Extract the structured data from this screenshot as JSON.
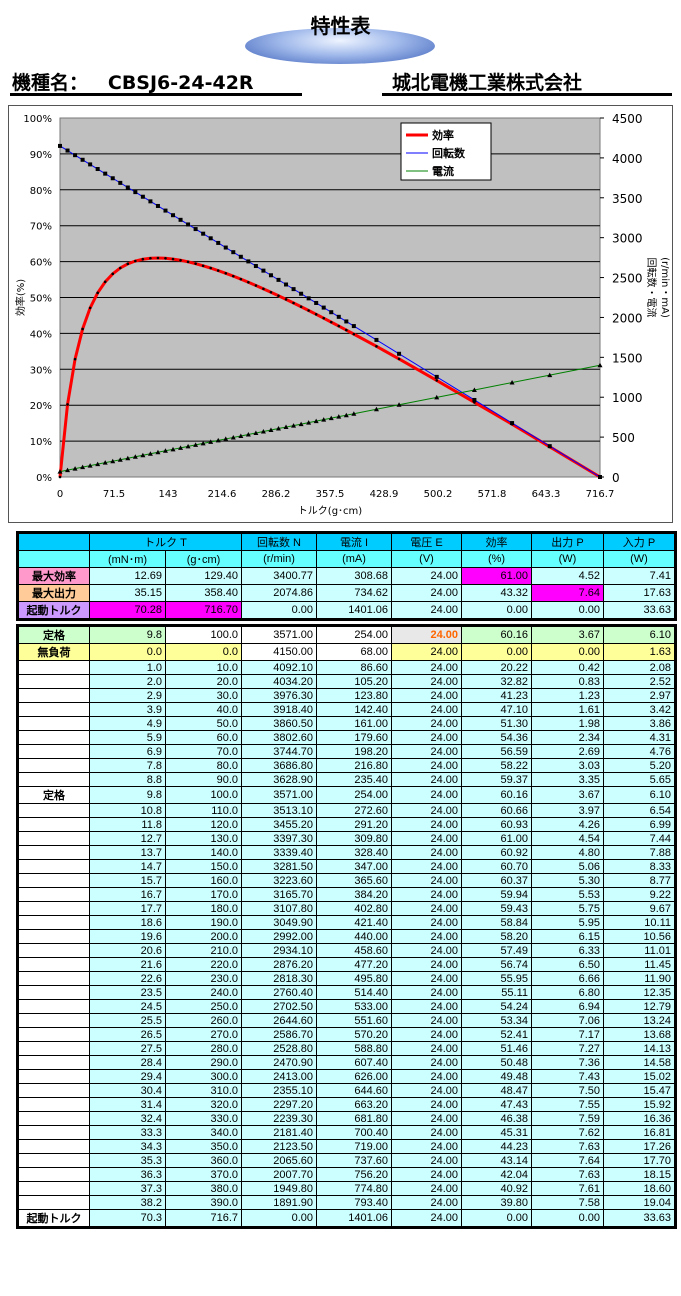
{
  "header": {
    "title": "特性表",
    "model_label": "機種名：",
    "model": "CBSJ6-24-42R",
    "company": "城北電機工業株式会社"
  },
  "summary_table": {
    "columns": [
      "トルク T",
      "回転数 N",
      "電流 I",
      "電圧 E",
      "効率",
      "出力 P",
      "入力 P"
    ],
    "units": [
      "(mN･m)",
      "(g･cm)",
      "(r/min)",
      "(mA)",
      "(V)",
      "(%)",
      "(W)",
      "(W)"
    ],
    "rows": [
      {
        "label": "最大効率",
        "label_color": "#ff99cc",
        "values": [
          "12.69",
          "129.40",
          "3400.77",
          "308.68",
          "24.00",
          "61.00",
          "4.52",
          "7.41"
        ],
        "highlight": [
          5
        ]
      },
      {
        "label": "最大出力",
        "label_color": "#ffcc99",
        "values": [
          "35.15",
          "358.40",
          "2074.86",
          "734.62",
          "24.00",
          "43.32",
          "7.64",
          "17.63"
        ],
        "highlight": [
          6
        ]
      },
      {
        "label": "起動トルク",
        "label_color": "#cc99ff",
        "values": [
          "70.28",
          "716.70",
          "0.00",
          "1401.06",
          "24.00",
          "0.00",
          "0.00",
          "33.63"
        ],
        "highlight": [
          0,
          1
        ]
      }
    ]
  },
  "data_table": {
    "rated": {
      "label": "定格",
      "values": [
        "9.8",
        "100.0",
        "3571.00",
        "254.00",
        "24.00",
        "60.16",
        "3.67",
        "6.10"
      ]
    },
    "no_load": {
      "label": "無負荷",
      "values": [
        "0.0",
        "0.0",
        "4150.00",
        "68.00",
        "24.00",
        "0.00",
        "0.00",
        "1.63"
      ]
    },
    "rows": [
      [
        "",
        "1.0",
        "10.0",
        "4092.10",
        "86.60",
        "24.00",
        "20.22",
        "0.42",
        "2.08"
      ],
      [
        "",
        "2.0",
        "20.0",
        "4034.20",
        "105.20",
        "24.00",
        "32.82",
        "0.83",
        "2.52"
      ],
      [
        "",
        "2.9",
        "30.0",
        "3976.30",
        "123.80",
        "24.00",
        "41.23",
        "1.23",
        "2.97"
      ],
      [
        "",
        "3.9",
        "40.0",
        "3918.40",
        "142.40",
        "24.00",
        "47.10",
        "1.61",
        "3.42"
      ],
      [
        "",
        "4.9",
        "50.0",
        "3860.50",
        "161.00",
        "24.00",
        "51.30",
        "1.98",
        "3.86"
      ],
      [
        "",
        "5.9",
        "60.0",
        "3802.60",
        "179.60",
        "24.00",
        "54.36",
        "2.34",
        "4.31"
      ],
      [
        "",
        "6.9",
        "70.0",
        "3744.70",
        "198.20",
        "24.00",
        "56.59",
        "2.69",
        "4.76"
      ],
      [
        "",
        "7.8",
        "80.0",
        "3686.80",
        "216.80",
        "24.00",
        "58.22",
        "3.03",
        "5.20"
      ],
      [
        "",
        "8.8",
        "90.0",
        "3628.90",
        "235.40",
        "24.00",
        "59.37",
        "3.35",
        "5.65"
      ],
      [
        "定格",
        "9.8",
        "100.0",
        "3571.00",
        "254.00",
        "24.00",
        "60.16",
        "3.67",
        "6.10"
      ],
      [
        "",
        "10.8",
        "110.0",
        "3513.10",
        "272.60",
        "24.00",
        "60.66",
        "3.97",
        "6.54"
      ],
      [
        "",
        "11.8",
        "120.0",
        "3455.20",
        "291.20",
        "24.00",
        "60.93",
        "4.26",
        "6.99"
      ],
      [
        "",
        "12.7",
        "130.0",
        "3397.30",
        "309.80",
        "24.00",
        "61.00",
        "4.54",
        "7.44"
      ],
      [
        "",
        "13.7",
        "140.0",
        "3339.40",
        "328.40",
        "24.00",
        "60.92",
        "4.80",
        "7.88"
      ],
      [
        "",
        "14.7",
        "150.0",
        "3281.50",
        "347.00",
        "24.00",
        "60.70",
        "5.06",
        "8.33"
      ],
      [
        "",
        "15.7",
        "160.0",
        "3223.60",
        "365.60",
        "24.00",
        "60.37",
        "5.30",
        "8.77"
      ],
      [
        "",
        "16.7",
        "170.0",
        "3165.70",
        "384.20",
        "24.00",
        "59.94",
        "5.53",
        "9.22"
      ],
      [
        "",
        "17.7",
        "180.0",
        "3107.80",
        "402.80",
        "24.00",
        "59.43",
        "5.75",
        "9.67"
      ],
      [
        "",
        "18.6",
        "190.0",
        "3049.90",
        "421.40",
        "24.00",
        "58.84",
        "5.95",
        "10.11"
      ],
      [
        "",
        "19.6",
        "200.0",
        "2992.00",
        "440.00",
        "24.00",
        "58.20",
        "6.15",
        "10.56"
      ],
      [
        "",
        "20.6",
        "210.0",
        "2934.10",
        "458.60",
        "24.00",
        "57.49",
        "6.33",
        "11.01"
      ],
      [
        "",
        "21.6",
        "220.0",
        "2876.20",
        "477.20",
        "24.00",
        "56.74",
        "6.50",
        "11.45"
      ],
      [
        "",
        "22.6",
        "230.0",
        "2818.30",
        "495.80",
        "24.00",
        "55.95",
        "6.66",
        "11.90"
      ],
      [
        "",
        "23.5",
        "240.0",
        "2760.40",
        "514.40",
        "24.00",
        "55.11",
        "6.80",
        "12.35"
      ],
      [
        "",
        "24.5",
        "250.0",
        "2702.50",
        "533.00",
        "24.00",
        "54.24",
        "6.94",
        "12.79"
      ],
      [
        "",
        "25.5",
        "260.0",
        "2644.60",
        "551.60",
        "24.00",
        "53.34",
        "7.06",
        "13.24"
      ],
      [
        "",
        "26.5",
        "270.0",
        "2586.70",
        "570.20",
        "24.00",
        "52.41",
        "7.17",
        "13.68"
      ],
      [
        "",
        "27.5",
        "280.0",
        "2528.80",
        "588.80",
        "24.00",
        "51.46",
        "7.27",
        "14.13"
      ],
      [
        "",
        "28.4",
        "290.0",
        "2470.90",
        "607.40",
        "24.00",
        "50.48",
        "7.36",
        "14.58"
      ],
      [
        "",
        "29.4",
        "300.0",
        "2413.00",
        "626.00",
        "24.00",
        "49.48",
        "7.43",
        "15.02"
      ],
      [
        "",
        "30.4",
        "310.0",
        "2355.10",
        "644.60",
        "24.00",
        "48.47",
        "7.50",
        "15.47"
      ],
      [
        "",
        "31.4",
        "320.0",
        "2297.20",
        "663.20",
        "24.00",
        "47.43",
        "7.55",
        "15.92"
      ],
      [
        "",
        "32.4",
        "330.0",
        "2239.30",
        "681.80",
        "24.00",
        "46.38",
        "7.59",
        "16.36"
      ],
      [
        "",
        "33.3",
        "340.0",
        "2181.40",
        "700.40",
        "24.00",
        "45.31",
        "7.62",
        "16.81"
      ],
      [
        "",
        "34.3",
        "350.0",
        "2123.50",
        "719.00",
        "24.00",
        "44.23",
        "7.63",
        "17.26"
      ],
      [
        "",
        "35.3",
        "360.0",
        "2065.60",
        "737.60",
        "24.00",
        "43.14",
        "7.64",
        "17.70"
      ],
      [
        "",
        "36.3",
        "370.0",
        "2007.70",
        "756.20",
        "24.00",
        "42.04",
        "7.63",
        "18.15"
      ],
      [
        "",
        "37.3",
        "380.0",
        "1949.80",
        "774.80",
        "24.00",
        "40.92",
        "7.61",
        "18.60"
      ],
      [
        "",
        "38.2",
        "390.0",
        "1891.90",
        "793.40",
        "24.00",
        "39.80",
        "7.58",
        "19.04"
      ],
      [
        "起動トルク",
        "70.3",
        "716.7",
        "0.00",
        "1401.06",
        "24.00",
        "0.00",
        "0.00",
        "33.63"
      ]
    ]
  },
  "chart_data": {
    "type": "line",
    "xlabel": "トルク(g･cm)",
    "ylabel_left": "効率(%)",
    "ylabel_right": "回転数・電流\n(r/min・mA)",
    "xlim": [
      0,
      716.7
    ],
    "xticks": [
      "0",
      "71.5",
      "143",
      "214.6",
      "286.2",
      "357.5",
      "428.9",
      "500.2",
      "571.8",
      "643.3",
      "716.7"
    ],
    "ylim_left": [
      0,
      100
    ],
    "yticks_left": [
      "0%",
      "10%",
      "20%",
      "30%",
      "40%",
      "50%",
      "60%",
      "70%",
      "80%",
      "90%",
      "100%"
    ],
    "ylim_right": [
      0,
      4500
    ],
    "yticks_right": [
      "0",
      "500",
      "1000",
      "1500",
      "2000",
      "2500",
      "3000",
      "3500",
      "4000",
      "4500"
    ],
    "grid": true,
    "legend": "top-right",
    "colors": {
      "効率": "#ff0000",
      "回転数": "#0000ff",
      "電流": "#008000",
      "plot_bg": "#c0c0c0"
    },
    "x": [
      0,
      10,
      20,
      30,
      40,
      50,
      60,
      70,
      80,
      90,
      100,
      110,
      120,
      130,
      140,
      150,
      160,
      170,
      180,
      190,
      200,
      210,
      220,
      230,
      240,
      250,
      260,
      270,
      280,
      290,
      300,
      310,
      320,
      330,
      340,
      350,
      360,
      370,
      380,
      390,
      420,
      450,
      500,
      550,
      600,
      650,
      716.7
    ],
    "series": [
      {
        "name": "効率",
        "axis": "left",
        "values": [
          0,
          20.22,
          32.82,
          41.23,
          47.1,
          51.3,
          54.36,
          56.59,
          58.22,
          59.37,
          60.16,
          60.66,
          60.93,
          61.0,
          60.92,
          60.7,
          60.37,
          59.94,
          59.43,
          58.84,
          58.2,
          57.49,
          56.74,
          55.95,
          55.11,
          54.24,
          53.34,
          52.41,
          51.46,
          50.48,
          49.48,
          48.47,
          47.43,
          46.38,
          45.31,
          44.23,
          43.14,
          42.04,
          40.92,
          39.8,
          36.4,
          32.9,
          26.9,
          20.8,
          14.7,
          8.4,
          0
        ]
      },
      {
        "name": "回転数",
        "axis": "right",
        "values": [
          4150,
          4092.1,
          4034.2,
          3976.3,
          3918.4,
          3860.5,
          3802.6,
          3744.7,
          3686.8,
          3628.9,
          3571,
          3513.1,
          3455.2,
          3397.3,
          3339.4,
          3281.5,
          3223.6,
          3165.7,
          3107.8,
          3049.9,
          2992,
          2934.1,
          2876.2,
          2818.3,
          2760.4,
          2702.5,
          2644.6,
          2586.7,
          2528.8,
          2470.9,
          2413,
          2355.1,
          2297.2,
          2239.3,
          2181.4,
          2123.5,
          2065.6,
          2007.7,
          1949.8,
          1891.9,
          1718.2,
          1544.5,
          1255,
          965.5,
          676,
          386.5,
          0
        ]
      },
      {
        "name": "電流",
        "axis": "right",
        "values": [
          68,
          86.6,
          105.2,
          123.8,
          142.4,
          161,
          179.6,
          198.2,
          216.8,
          235.4,
          254,
          272.6,
          291.2,
          309.8,
          328.4,
          347,
          365.6,
          384.2,
          402.8,
          421.4,
          440,
          458.6,
          477.2,
          495.8,
          514.4,
          533,
          551.6,
          570.2,
          588.8,
          607.4,
          626,
          644.6,
          663.2,
          681.8,
          700.4,
          719,
          737.6,
          756.2,
          774.8,
          793.4,
          849.2,
          905,
          998,
          1091,
          1184,
          1277,
          1401.06
        ]
      }
    ]
  }
}
